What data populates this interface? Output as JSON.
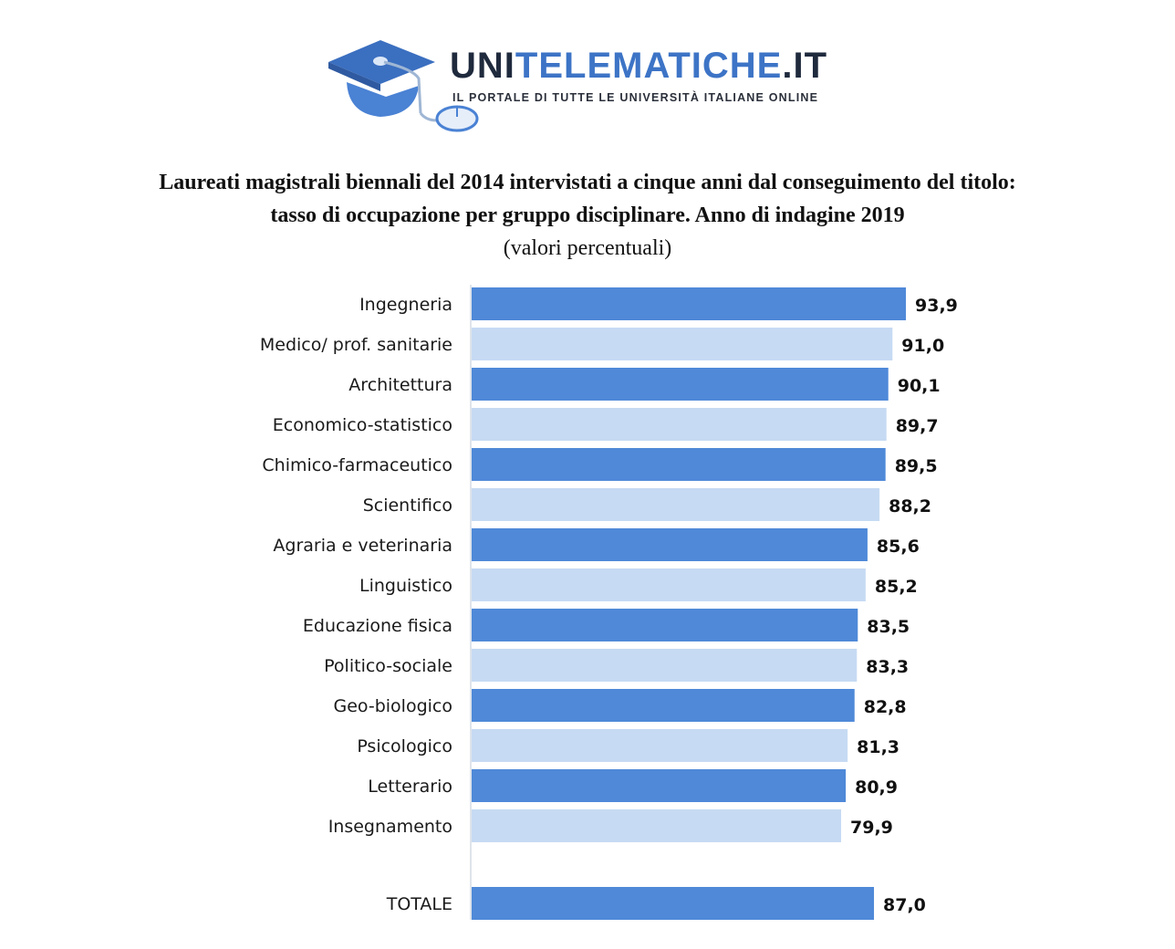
{
  "logo": {
    "brand_part1": "UNI",
    "brand_part2": "TELEMATICHE",
    "brand_part3": ".IT",
    "tagline": "IL PORTALE DI TUTTE LE UNIVERSITÀ ITALIANE ONLINE",
    "icon": "graduation-cap-mouse-icon",
    "colors": {
      "dark": "#1f2a3d",
      "blue": "#3d74c6"
    }
  },
  "chart_data": {
    "type": "bar",
    "orientation": "horizontal",
    "title_line1": "Laureati magistrali biennali del 2014 intervistati a cinque anni dal conseguimento del titolo:",
    "title_line2": "tasso di occupazione per gruppo disciplinare. Anno di indagine 2019",
    "subtitle": "(valori percentuali)",
    "categories": [
      "Ingegneria",
      "Medico/ prof. sanitarie",
      "Architettura",
      "Economico-statistico",
      "Chimico-farmaceutico",
      "Scientifico",
      "Agraria e veterinaria",
      "Linguistico",
      "Educazione fisica",
      "Politico-sociale",
      "Geo-biologico",
      "Psicologico",
      "Letterario",
      "Insegnamento"
    ],
    "values": [
      93.9,
      91.0,
      90.1,
      89.7,
      89.5,
      88.2,
      85.6,
      85.2,
      83.5,
      83.3,
      82.8,
      81.3,
      80.9,
      79.9
    ],
    "value_labels": [
      "93,9",
      "91,0",
      "90,1",
      "89,7",
      "89,5",
      "88,2",
      "85,6",
      "85,2",
      "83,5",
      "83,3",
      "82,8",
      "81,3",
      "80,9",
      "79,9"
    ],
    "total": {
      "label": "TOTALE",
      "value": 87.0,
      "value_label": "87,0"
    },
    "xlim": [
      0,
      93.9
    ],
    "grid": false,
    "colors": {
      "dark": "#4f89d8",
      "light": "#c6daf3",
      "axis": "#bfc9d6"
    }
  }
}
